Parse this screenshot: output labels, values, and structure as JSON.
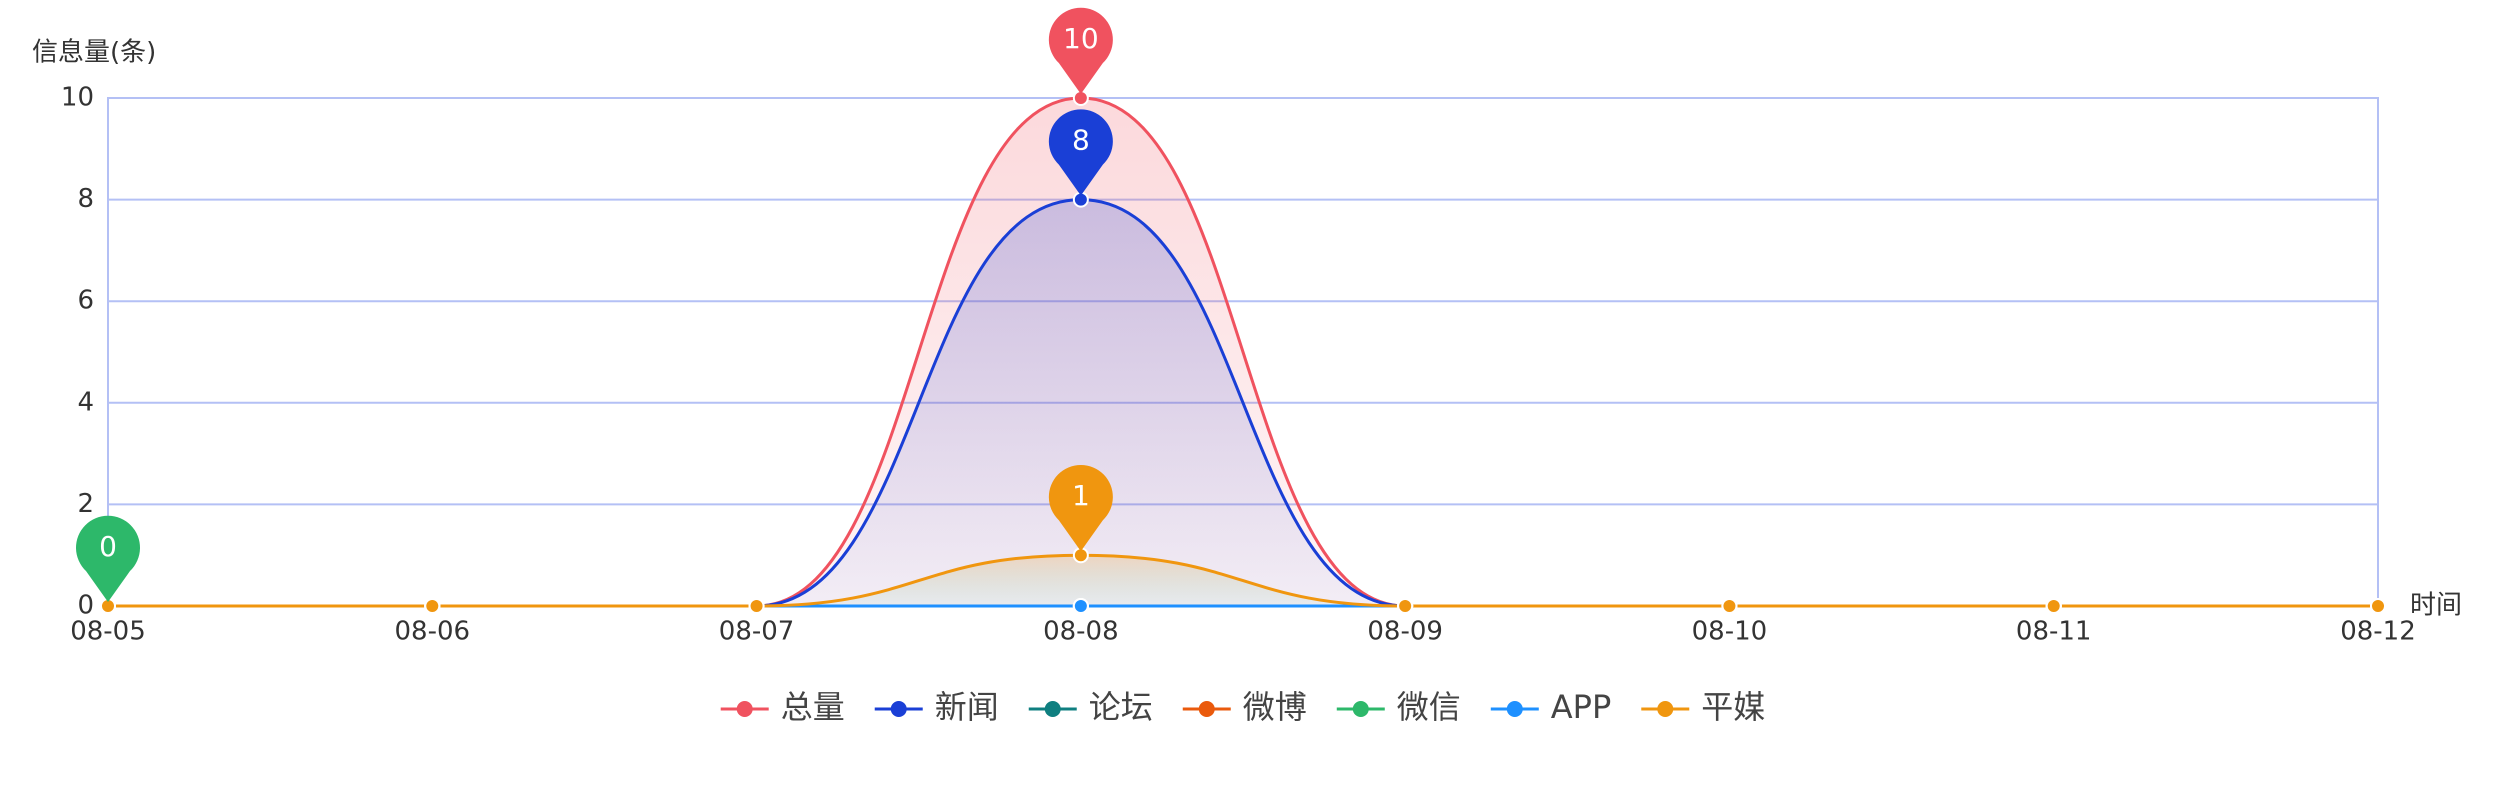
{
  "chart_data": {
    "type": "line",
    "y_label": "信息量(条)",
    "x_label": "时间",
    "categories": [
      "08-05",
      "08-06",
      "08-07",
      "08-08",
      "08-09",
      "08-10",
      "08-11",
      "08-12"
    ],
    "ylim": [
      0,
      10
    ],
    "yticks": [
      0,
      2,
      4,
      6,
      8,
      10
    ],
    "grid": true,
    "smooth": true,
    "legend": "bottom",
    "series": [
      {
        "name": "总量",
        "color": "#f0525f",
        "values": [
          0,
          0,
          0,
          10,
          0,
          0,
          0,
          0
        ],
        "area": true,
        "mark_max": true
      },
      {
        "name": "新闻",
        "color": "#1a3fd6",
        "values": [
          0,
          0,
          0,
          8,
          0,
          0,
          0,
          0
        ],
        "area": true,
        "mark_max": true
      },
      {
        "name": "论坛",
        "color": "#0f7f80",
        "values": [
          0,
          0,
          0,
          0,
          0,
          0,
          0,
          0
        ]
      },
      {
        "name": "微博",
        "color": "#ea5a0c",
        "values": [
          0,
          0,
          0,
          0,
          0,
          0,
          0,
          0
        ]
      },
      {
        "name": "微信",
        "color": "#2db86a",
        "values": [
          0,
          0,
          0,
          0,
          0,
          0,
          0,
          0
        ],
        "mark_max": true
      },
      {
        "name": "APP",
        "color": "#1e90ff",
        "values": [
          0,
          0,
          0,
          0,
          0,
          0,
          0,
          0
        ]
      },
      {
        "name": "平媒",
        "color": "#f0960f",
        "values": [
          0,
          0,
          0,
          1,
          0,
          0,
          0,
          0
        ],
        "area": true,
        "mark_max": true
      }
    ]
  }
}
